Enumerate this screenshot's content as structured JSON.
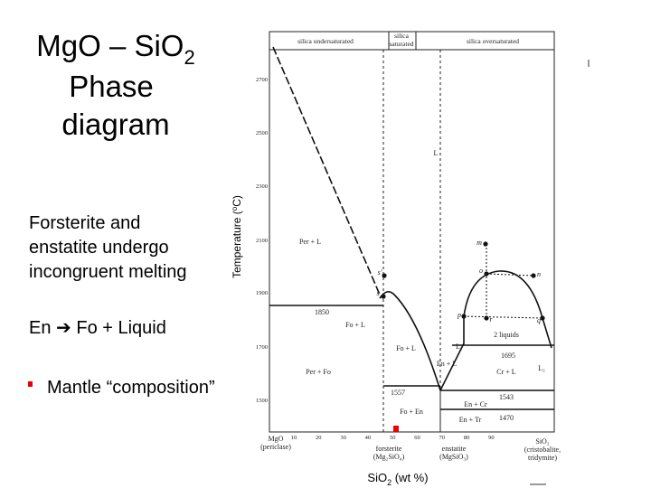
{
  "title": {
    "line1": "MgO – SiO",
    "sub": "2",
    "line2": "Phase",
    "line3": "diagram"
  },
  "body": [
    "Forsterite and",
    "enstatite undergo",
    "incongruent melting"
  ],
  "reaction": {
    "left": "En",
    "arrow": "➔",
    "right": "Fo + Liquid"
  },
  "bullet": "Mantle “composition”",
  "diagram": {
    "header": [
      "silica undersaturated",
      "silica",
      "saturated",
      "silica oversaturated"
    ],
    "y_label": {
      "text": "Temperature (",
      "sup": "o",
      "end": "C)"
    },
    "yticks": [
      "2700",
      "2500",
      "2300",
      "2100",
      "1900",
      "1700",
      "1500"
    ],
    "xticks": [
      "10",
      "20",
      "30",
      "40",
      "50",
      "60",
      "70",
      "80",
      "90"
    ],
    "regions": [
      "L",
      "Per + L",
      "Fo + L",
      "Per + Fo",
      "Fo + L",
      "L₁",
      "En + L",
      "2 liquids",
      "Cr + L",
      "L₂",
      "Fo + En",
      "En + Cr",
      "En + Tr"
    ],
    "temperatures": [
      "1850",
      "1557",
      "1695",
      "1543",
      "1470"
    ],
    "points": [
      "m",
      "o",
      "n",
      "p",
      "r",
      "q",
      "s'",
      "s"
    ],
    "end_members": [
      [
        "MgO",
        "(periclase)"
      ],
      [
        "forsterite",
        "(Mg₂SiO₄)"
      ],
      [
        "enstatite",
        "(MgSiO₃)"
      ],
      [
        "SiO₂",
        "(cristobalite,",
        "tridymite)"
      ]
    ],
    "x_label": {
      "text": "SiO",
      "sub": "2",
      "end": " (wt %)"
    }
  }
}
